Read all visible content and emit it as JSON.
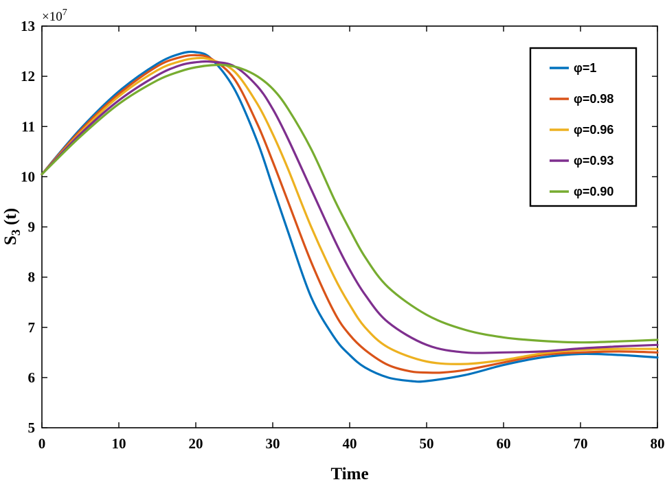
{
  "chart_data": {
    "type": "line",
    "title": "",
    "xlabel": "Time",
    "ylabel_main": "S",
    "ylabel_sub": "3",
    "ylabel_rest": " (t)",
    "y_multiplier_base": "×10",
    "y_multiplier_exp": "7",
    "xlim": [
      0,
      80
    ],
    "ylim": [
      5,
      13
    ],
    "xticks": [
      0,
      10,
      20,
      30,
      40,
      50,
      60,
      70,
      80
    ],
    "yticks": [
      5,
      6,
      7,
      8,
      9,
      10,
      11,
      12,
      13
    ],
    "grid": false,
    "legend_position": "top-right",
    "series": [
      {
        "name": "φ=1",
        "color": "#0072BD",
        "x": [
          0,
          5,
          10,
          15,
          18,
          20,
          22,
          25,
          28,
          30,
          32,
          35,
          38,
          40,
          42,
          45,
          48,
          50,
          55,
          60,
          65,
          70,
          75,
          80
        ],
        "y": [
          10.05,
          10.95,
          11.7,
          12.25,
          12.45,
          12.48,
          12.35,
          11.75,
          10.7,
          9.8,
          8.9,
          7.6,
          6.8,
          6.45,
          6.2,
          6.0,
          5.93,
          5.93,
          6.05,
          6.25,
          6.4,
          6.47,
          6.45,
          6.4
        ]
      },
      {
        "name": "φ=0.98",
        "color": "#D95319",
        "x": [
          0,
          5,
          10,
          15,
          18,
          20,
          22,
          25,
          28,
          30,
          32,
          35,
          38,
          40,
          42,
          45,
          48,
          50,
          52,
          55,
          60,
          65,
          70,
          75,
          80
        ],
        "y": [
          10.05,
          10.92,
          11.65,
          12.2,
          12.38,
          12.42,
          12.35,
          11.95,
          11.05,
          10.3,
          9.5,
          8.3,
          7.3,
          6.85,
          6.55,
          6.25,
          6.12,
          6.1,
          6.1,
          6.15,
          6.3,
          6.45,
          6.5,
          6.52,
          6.5
        ]
      },
      {
        "name": "φ=0.96",
        "color": "#EDB120",
        "x": [
          0,
          5,
          10,
          15,
          18,
          20,
          22,
          25,
          28,
          30,
          32,
          35,
          38,
          40,
          42,
          45,
          50,
          55,
          60,
          65,
          70,
          75,
          80
        ],
        "y": [
          10.05,
          10.88,
          11.6,
          12.12,
          12.3,
          12.36,
          12.33,
          12.1,
          11.45,
          10.85,
          10.15,
          9.0,
          8.0,
          7.45,
          7.0,
          6.6,
          6.32,
          6.27,
          6.35,
          6.48,
          6.55,
          6.57,
          6.57
        ]
      },
      {
        "name": "φ=0.93",
        "color": "#7E2F8E",
        "x": [
          0,
          5,
          10,
          15,
          18,
          20,
          22,
          25,
          28,
          30,
          32,
          35,
          38,
          40,
          42,
          45,
          50,
          55,
          60,
          65,
          70,
          75,
          80
        ],
        "y": [
          10.05,
          10.85,
          11.52,
          12.02,
          12.22,
          12.28,
          12.29,
          12.2,
          11.8,
          11.35,
          10.75,
          9.75,
          8.75,
          8.15,
          7.65,
          7.1,
          6.65,
          6.5,
          6.5,
          6.52,
          6.58,
          6.62,
          6.65
        ]
      },
      {
        "name": "φ=0.90",
        "color": "#77AC30",
        "x": [
          0,
          5,
          10,
          15,
          18,
          20,
          22,
          24,
          26,
          28,
          30,
          32,
          35,
          38,
          40,
          42,
          45,
          50,
          55,
          60,
          65,
          70,
          75,
          80
        ],
        "y": [
          10.05,
          10.8,
          11.45,
          11.92,
          12.1,
          12.18,
          12.22,
          12.22,
          12.15,
          12.0,
          11.75,
          11.35,
          10.55,
          9.55,
          8.95,
          8.4,
          7.8,
          7.25,
          6.95,
          6.8,
          6.73,
          6.7,
          6.72,
          6.75
        ]
      }
    ]
  }
}
